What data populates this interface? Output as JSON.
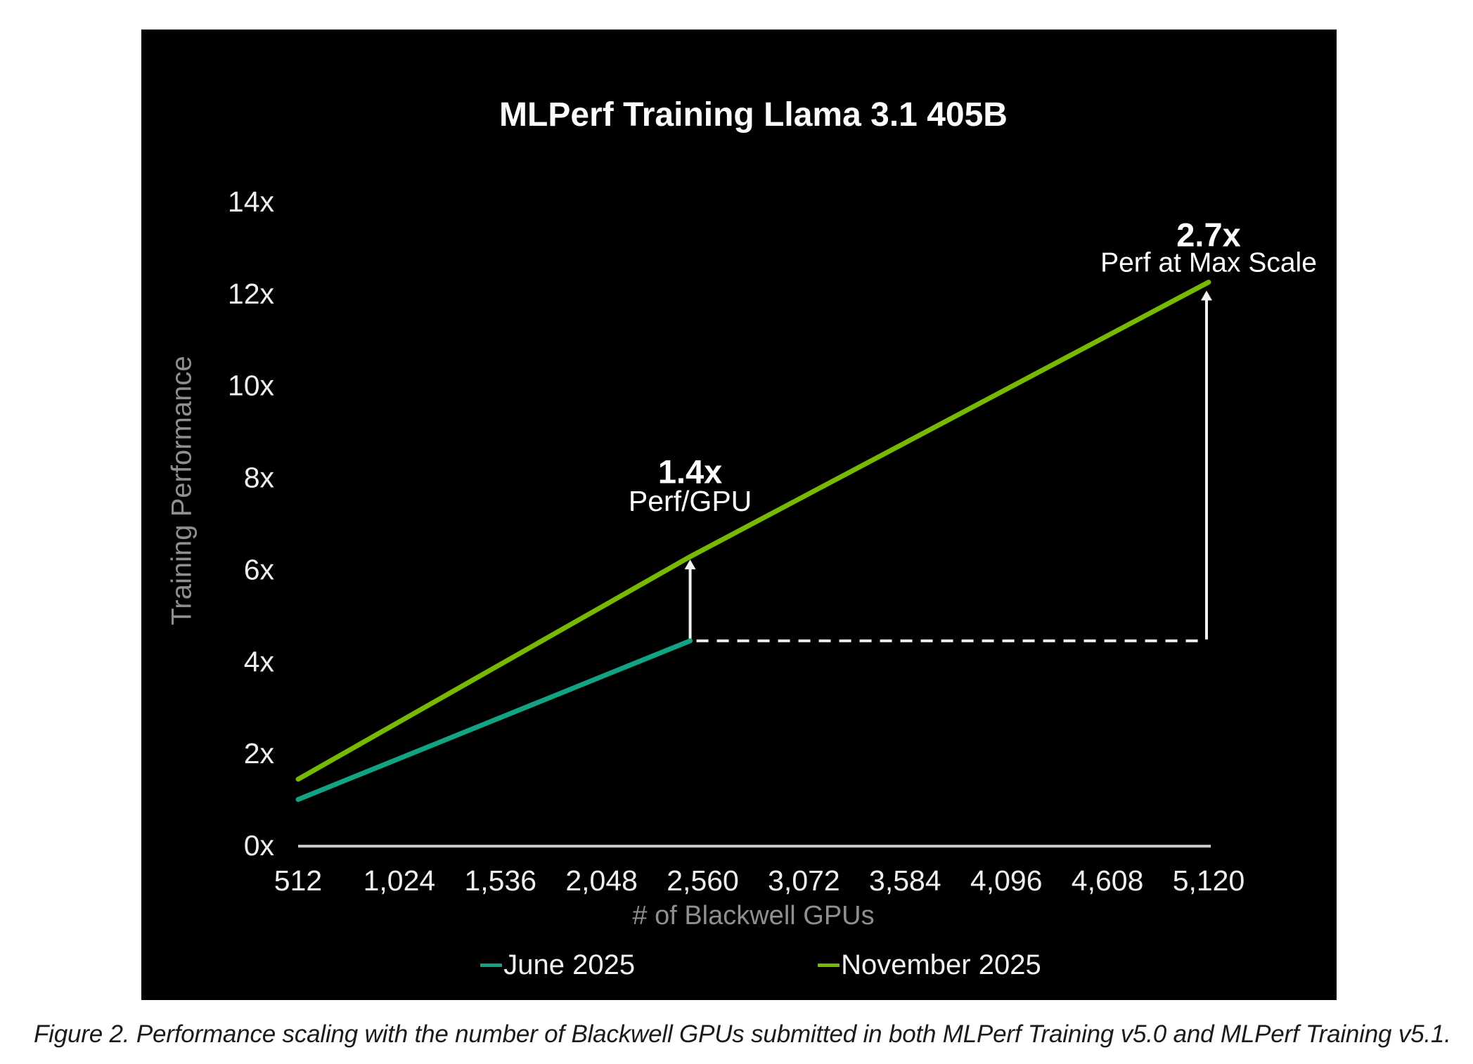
{
  "chart_data": {
    "type": "line",
    "title": "MLPerf Training Llama 3.1 405B",
    "xlabel": "# of Blackwell GPUs",
    "ylabel": "Training Performance",
    "xlim": [
      512,
      5120
    ],
    "ylim": [
      0,
      14
    ],
    "grid": false,
    "legend_position": "bottom",
    "background_color": "#000000",
    "x_ticks": [
      512,
      1024,
      1536,
      2048,
      2560,
      3072,
      3584,
      4096,
      4608,
      5120
    ],
    "x_tick_labels": [
      "512",
      "1,024",
      "1,536",
      "2,048",
      "2,560",
      "3,072",
      "3,584",
      "4,096",
      "4,608",
      "5,120"
    ],
    "y_ticks": [
      0,
      2,
      4,
      6,
      8,
      10,
      12,
      14
    ],
    "y_tick_labels": [
      "0x",
      "2x",
      "4x",
      "6x",
      "8x",
      "10x",
      "12x",
      "14x"
    ],
    "series": [
      {
        "name": "June 2025",
        "color": "#12a284",
        "x": [
          512,
          2496
        ],
        "values": [
          1.0,
          4.45
        ]
      },
      {
        "name": "November 2025",
        "color": "#76b900",
        "x": [
          512,
          2496,
          5120
        ],
        "values": [
          1.44,
          6.28,
          12.25
        ]
      }
    ],
    "annotations": [
      {
        "value": "1.4x",
        "label": "Perf/GPU",
        "at_x": 2496,
        "arrow_from_value": 4.45,
        "arrow_to_value": 6.28
      },
      {
        "value": "2.7x",
        "label": "Perf at Max Scale",
        "at_x": 5120,
        "arrow_from_value": 4.45,
        "arrow_to_value": 12.25
      }
    ],
    "baseline_dash": {
      "from_x": 2496,
      "to_x": 5120,
      "at_value": 4.45
    },
    "style": {
      "axis_line_color": "#c9c9c9",
      "tick_label_color": "#efefef",
      "axis_title_color": "#8f8f8f",
      "annotation_color": "#ffffff",
      "arrow_color": "#f2f2f2",
      "dash_color": "#ececec"
    }
  },
  "caption": {
    "text": "Figure 2. Performance scaling with the number of Blackwell GPUs submitted in both MLPerf Training v5.0 and MLPerf Training v5.1."
  }
}
